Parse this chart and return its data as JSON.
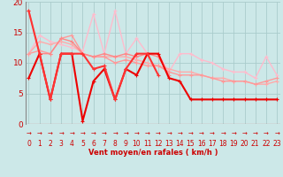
{
  "bg_color": "#cce8e8",
  "grid_color": "#aacccc",
  "xlabel": "Vent moyen/en rafales ( km/h )",
  "xlim": [
    -0.3,
    23.3
  ],
  "ylim": [
    0,
    20
  ],
  "yticks": [
    0,
    5,
    10,
    15,
    20
  ],
  "xticks": [
    0,
    1,
    2,
    3,
    4,
    5,
    6,
    7,
    8,
    9,
    10,
    11,
    12,
    13,
    14,
    15,
    16,
    17,
    18,
    19,
    20,
    21,
    22,
    23
  ],
  "series": [
    {
      "x": [
        0,
        1,
        2,
        3,
        4,
        5,
        6,
        7,
        8,
        9,
        10,
        11,
        12,
        13,
        14,
        15,
        16,
        17,
        18,
        19,
        20,
        21,
        22,
        23
      ],
      "y": [
        11.5,
        14.5,
        13.5,
        13.0,
        12.5,
        12.0,
        18.0,
        11.5,
        18.5,
        11.5,
        14.0,
        11.5,
        11.5,
        8.5,
        11.5,
        11.5,
        10.5,
        10.0,
        9.0,
        8.5,
        8.5,
        7.5,
        11.0,
        8.0
      ],
      "color": "#ffbbcc",
      "lw": 1.0
    },
    {
      "x": [
        0,
        1,
        2,
        3,
        4,
        5,
        6,
        7,
        8,
        9,
        10,
        11,
        12,
        13,
        14,
        15,
        16,
        17,
        18,
        19,
        20,
        21,
        22,
        23
      ],
      "y": [
        11.5,
        13.5,
        13.0,
        13.5,
        13.0,
        11.5,
        11.0,
        11.0,
        11.0,
        11.0,
        10.5,
        10.0,
        9.5,
        9.0,
        8.5,
        8.5,
        8.0,
        7.5,
        7.5,
        7.0,
        7.0,
        6.5,
        6.5,
        7.0
      ],
      "color": "#ffaaaa",
      "lw": 1.0
    },
    {
      "x": [
        0,
        1,
        2,
        3,
        4,
        5,
        6,
        7,
        8,
        9,
        10,
        11,
        12,
        13,
        14,
        15,
        16,
        17,
        18,
        19,
        20,
        21,
        22,
        23
      ],
      "y": [
        11.5,
        12.0,
        11.5,
        14.0,
        14.5,
        11.5,
        11.0,
        11.0,
        10.0,
        10.5,
        10.0,
        9.5,
        9.5,
        8.5,
        8.0,
        8.0,
        8.0,
        7.5,
        7.0,
        7.0,
        7.0,
        6.5,
        7.0,
        7.5
      ],
      "color": "#ff9999",
      "lw": 1.0
    },
    {
      "x": [
        0,
        1,
        2,
        3,
        4,
        5,
        6,
        7,
        8,
        9,
        10,
        11,
        12,
        13
      ],
      "y": [
        18.5,
        11.5,
        11.5,
        14.0,
        13.5,
        11.5,
        11.0,
        11.5,
        11.0,
        11.5,
        11.0,
        11.5,
        11.0,
        8.0
      ],
      "color": "#ff8888",
      "lw": 1.0
    },
    {
      "x": [
        0,
        1,
        2,
        3,
        4,
        5,
        6,
        7,
        8,
        9,
        10,
        11,
        12,
        13,
        14,
        15,
        16,
        17,
        18,
        19,
        20,
        21,
        22,
        23
      ],
      "y": [
        7.5,
        11.5,
        4.0,
        11.5,
        11.5,
        0.5,
        7.0,
        9.0,
        4.0,
        9.0,
        8.0,
        11.5,
        11.5,
        7.5,
        7.0,
        4.0,
        4.0,
        4.0,
        4.0,
        4.0,
        4.0,
        4.0,
        4.0,
        4.0
      ],
      "color": "#ee0000",
      "lw": 1.5
    },
    {
      "x": [
        0,
        1,
        2,
        3,
        4,
        5,
        6,
        7,
        8,
        9,
        10,
        11,
        12
      ],
      "y": [
        18.5,
        11.5,
        4.0,
        11.5,
        11.5,
        11.5,
        9.0,
        9.5,
        4.0,
        9.0,
        11.5,
        11.5,
        8.0
      ],
      "color": "#ff3333",
      "lw": 1.5
    }
  ],
  "arrow_chars": "→",
  "ylabel_color": "#cc0000",
  "xlabel_color": "#cc0000",
  "tick_color": "#cc0000",
  "spine_color": "#888888",
  "hline_color": "#cc0000"
}
